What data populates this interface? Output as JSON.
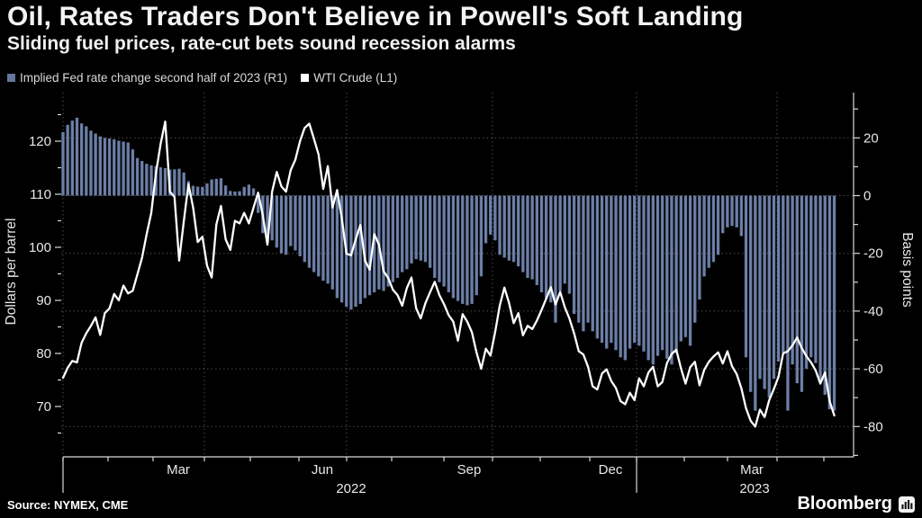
{
  "header": {
    "title": "Oil, Rates Traders Don't Believe in Powell's Soft Landing",
    "subtitle": "Sliding fuel prices, rate-cut bets sound recession alarms"
  },
  "footer": {
    "source": "Source: NYMEX, CME",
    "brand": "Bloomberg"
  },
  "colors": {
    "background": "#000000",
    "bar": "#64779e",
    "bar_edge": "#8b9cc0",
    "line": "#ffffff",
    "grid": "#4d4d4d",
    "axis": "#d9d9d9",
    "text": "#e8e8e8"
  },
  "chart_data": {
    "type": "combo",
    "x_range": [
      "Jan 2022",
      "May 2023"
    ],
    "x_axis": {
      "month_labels": [
        "Mar",
        "Jun",
        "Sep",
        "Dec",
        "Mar"
      ],
      "year_labels": [
        "2022",
        "2023"
      ]
    },
    "left_axis": {
      "label": "Dollars per barrel",
      "ticks": [
        120,
        110,
        100,
        90,
        80,
        70
      ],
      "range": [
        63,
        127
      ]
    },
    "right_axis": {
      "label": "Basis points",
      "ticks": [
        20,
        0,
        -20,
        -40,
        -60,
        -80
      ],
      "range": [
        -92,
        36
      ]
    },
    "series": [
      {
        "name": "Implied Fed rate change second half of 2023 (R1)",
        "type": "bar",
        "axis": "right",
        "color": "#64779e",
        "values": [
          22,
          24.5,
          26,
          27,
          25,
          24,
          22.5,
          21.5,
          20.5,
          20,
          19.8,
          19.5,
          19,
          18.7,
          18.4,
          16,
          13,
          12,
          11,
          10.5,
          10.2,
          9.8,
          9.5,
          9,
          9.1,
          9.3,
          8,
          5,
          3.4,
          3.1,
          3,
          4.2,
          5.6,
          5.8,
          6,
          3.5,
          1.6,
          1.4,
          1.5,
          3,
          3.8,
          2.5,
          -6,
          -13,
          -16.5,
          -15.5,
          -18,
          -20,
          -20.5,
          -17.5,
          -19,
          -21,
          -23,
          -25,
          -26.5,
          -28,
          -29.5,
          -30.5,
          -32.5,
          -35.5,
          -37,
          -38.5,
          -39.5,
          -38.5,
          -37.5,
          -35.5,
          -34.5,
          -33.5,
          -32.5,
          -33,
          -31.5,
          -30,
          -28.5,
          -26.5,
          -25.5,
          -23.5,
          -22,
          -22.5,
          -23,
          -25,
          -28.5,
          -30,
          -31.5,
          -33.5,
          -35.5,
          -36.5,
          -37.5,
          -38,
          -37.5,
          -34.5,
          -28,
          -16.5,
          -13.5,
          -15.5,
          -20.5,
          -21.5,
          -22.5,
          -23,
          -24.5,
          -26.5,
          -28.5,
          -29,
          -31,
          -33.5,
          -35.5,
          -37,
          -44,
          -33,
          -30.5,
          -34,
          -41,
          -44,
          -47,
          -44,
          -47,
          -49.5,
          -51,
          -53,
          -51,
          -53.5,
          -56,
          -57,
          -53,
          -51,
          -52,
          -54,
          -57,
          -58.5,
          -55.5,
          -53.5,
          -56.5,
          -58.5,
          -54.5,
          -50.5,
          -49,
          -52,
          -44,
          -36,
          -28,
          -25,
          -23,
          -20.5,
          -13,
          -11,
          -10.5,
          -11,
          -14,
          -56,
          -68,
          -74.5,
          -63.5,
          -67,
          -70,
          -63.5,
          -57.5,
          -54.5,
          -74.5,
          -58.5,
          -65,
          -68,
          -60,
          -56,
          -58,
          -64,
          -69,
          -74,
          -74.5
        ]
      },
      {
        "name": "WTI Crude (L1)",
        "type": "line",
        "axis": "left",
        "color": "#ffffff",
        "values": [
          75.4,
          77.3,
          78.6,
          78.3,
          82,
          83.8,
          85.2,
          86.8,
          83.5,
          87.6,
          88.5,
          91.2,
          90,
          92.8,
          91.3,
          91.8,
          94.9,
          98,
          102.5,
          106.5,
          114,
          119.5,
          123.7,
          110.5,
          109.5,
          97.5,
          105,
          111.9,
          107.5,
          101,
          102,
          96.5,
          94.3,
          104.3,
          107.8,
          101.5,
          99.5,
          105,
          104.5,
          106.5,
          104.5,
          107.5,
          110.3,
          106,
          100.5,
          110.5,
          114.2,
          111.5,
          110.5,
          114.5,
          116.5,
          120,
          122.5,
          123.3,
          120.5,
          117.5,
          111,
          115.3,
          107.5,
          110.8,
          105.5,
          98.8,
          98.5,
          101.5,
          104.2,
          97.5,
          95.8,
          102.5,
          100.5,
          95.5,
          94.2,
          92,
          91,
          89,
          92.3,
          94.3,
          88.5,
          86.6,
          89.5,
          91.5,
          93.5,
          91,
          89.3,
          87.2,
          86,
          82.4,
          87.4,
          86,
          84,
          80.2,
          77.1,
          80.9,
          79.6,
          84,
          89,
          92.4,
          89.5,
          85.7,
          87.6,
          83.4,
          85.2,
          84.6,
          86.2,
          88.2,
          90.3,
          92.5,
          89.2,
          91.6,
          88.7,
          86.6,
          83.8,
          80.4,
          79.8,
          77.5,
          73.8,
          73.2,
          76.2,
          77,
          74.8,
          73.5,
          71,
          70.4,
          72.6,
          71.2,
          75.3,
          73.8,
          76.4,
          77.5,
          73.8,
          74.6,
          78.2,
          79.9,
          80.7,
          77.2,
          74.3,
          77.4,
          78.4,
          74,
          76.9,
          78.4,
          79.4,
          80.2,
          78.1,
          80.4,
          77.6,
          76.1,
          73.4,
          69.7,
          67.3,
          66.2,
          69.4,
          68,
          71.2,
          73.3,
          75.6,
          80,
          80.4,
          81.5,
          83,
          81,
          79.5,
          78.3,
          76.8,
          74.3,
          76.4,
          71,
          68.3
        ]
      }
    ]
  }
}
